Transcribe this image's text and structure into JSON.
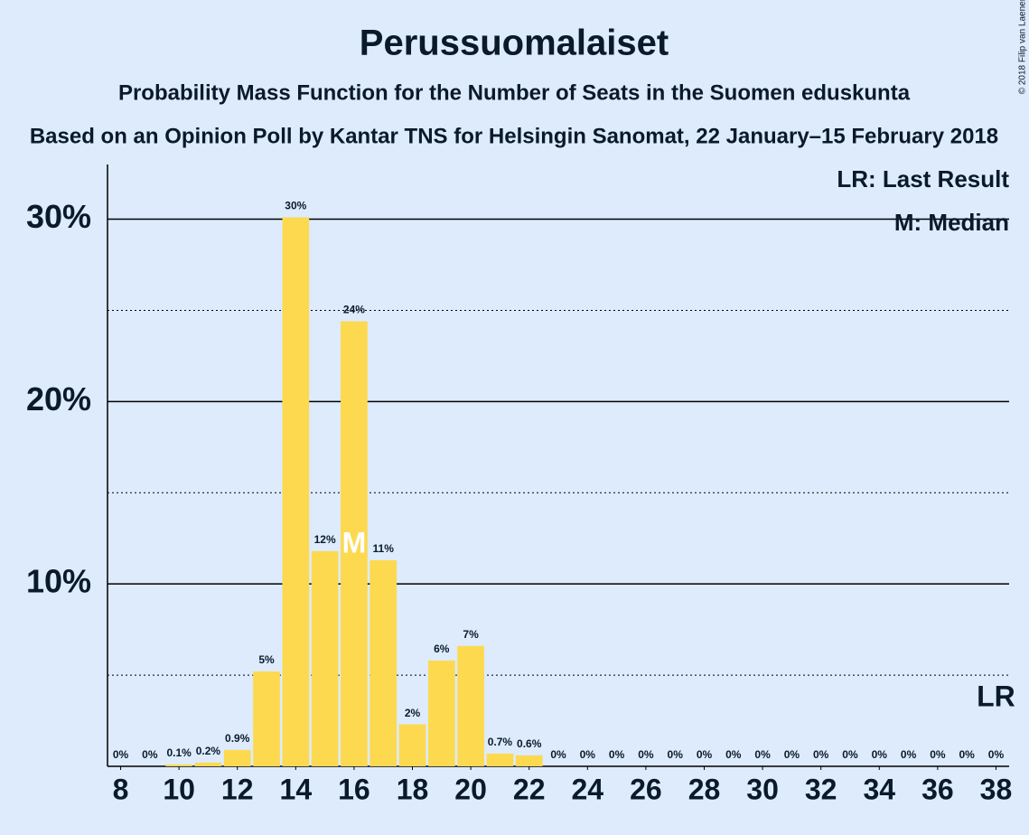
{
  "chart_data": {
    "type": "bar",
    "title": "Perussuomalaiset",
    "subtitle": "Probability Mass Function for the Number of Seats in the Suomen eduskunta",
    "caption": "Based on an Opinion Poll by Kantar TNS for Helsingin Sanomat, 22 January–15 February 2018",
    "copyright": "© 2018 Filip van Laenen",
    "x": [
      8,
      9,
      10,
      11,
      12,
      13,
      14,
      15,
      16,
      17,
      18,
      19,
      20,
      21,
      22,
      23,
      24,
      25,
      26,
      27,
      28,
      29,
      30,
      31,
      32,
      33,
      34,
      35,
      36,
      37,
      38
    ],
    "values": [
      0,
      0,
      0.1,
      0.2,
      0.9,
      5.2,
      30.1,
      11.8,
      24.4,
      11.3,
      2.3,
      5.8,
      6.6,
      0.7,
      0.6,
      0,
      0,
      0,
      0,
      0,
      0,
      0,
      0,
      0,
      0,
      0,
      0,
      0,
      0,
      0,
      0
    ],
    "value_labels": [
      "0%",
      "0%",
      "0.1%",
      "0.2%",
      "0.9%",
      "5%",
      "30%",
      "12%",
      "24%",
      "11%",
      "2%",
      "6%",
      "7%",
      "0.7%",
      "0.6%",
      "0%",
      "0%",
      "0%",
      "0%",
      "0%",
      "0%",
      "0%",
      "0%",
      "0%",
      "0%",
      "0%",
      "0%",
      "0%",
      "0%",
      "0%",
      "0%"
    ],
    "color": "#fdd94f",
    "xlim": [
      7.55,
      38.45
    ],
    "xticks": [
      8,
      10,
      12,
      14,
      16,
      18,
      20,
      22,
      24,
      26,
      28,
      30,
      32,
      34,
      36,
      38
    ],
    "ylim": [
      0,
      33
    ],
    "yticks": [
      {
        "value": 10,
        "label": "10%"
      },
      {
        "value": 20,
        "label": "20%"
      },
      {
        "value": 30,
        "label": "30%"
      }
    ],
    "minor_grid": [
      5,
      15,
      25
    ],
    "grid": true,
    "median": 16,
    "median_label": "M",
    "last_result": 38,
    "last_result_label": "LR",
    "legend": [
      "LR: Last Result",
      "M: Median"
    ],
    "legend_position": "upper right"
  }
}
